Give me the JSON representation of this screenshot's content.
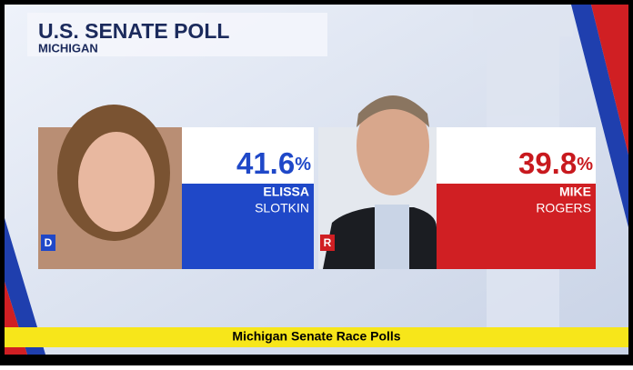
{
  "header": {
    "title": "U.S. SENATE POLL",
    "subtitle": "MICHIGAN"
  },
  "candidates": [
    {
      "party": "D",
      "percent": 41.6,
      "percent_unit": "%",
      "first_name": "ELISSA",
      "last_name": "SLOTKIN"
    },
    {
      "party": "R",
      "percent": 39.8,
      "percent_unit": "%",
      "first_name": "MIKE",
      "last_name": "ROGERS"
    }
  ],
  "caption": "Michigan Senate Race Polls"
}
